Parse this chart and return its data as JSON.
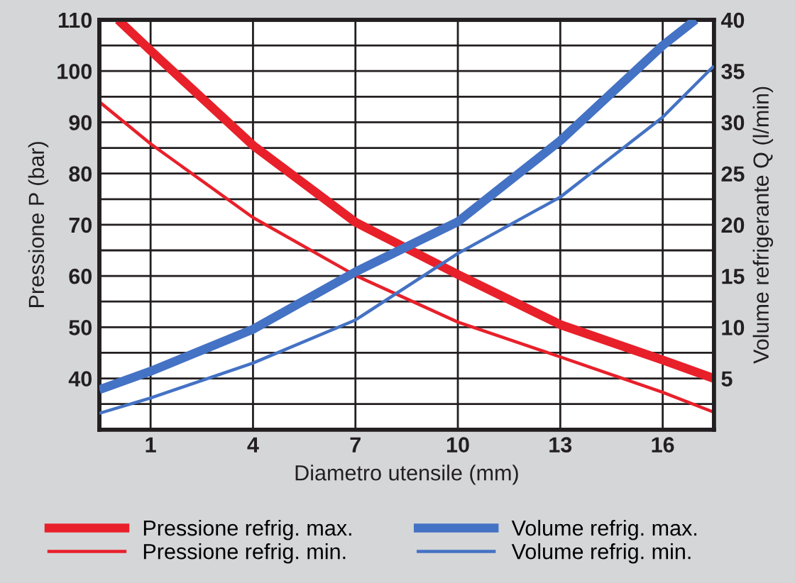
{
  "chart_data": {
    "type": "line",
    "xlabel": "Diametro utensile (mm)",
    "ylabel": "Pressione P (bar)",
    "y2label": "Volume refrigerante Q (l/min)",
    "xlim": [
      -0.5,
      17.5
    ],
    "xticks": [
      1,
      4,
      7,
      10,
      13,
      16
    ],
    "ylim": [
      30,
      110
    ],
    "yticks": [
      {
        "value": 35,
        "label": null
      },
      40,
      {
        "value": 45,
        "label": null
      },
      50,
      {
        "value": 55,
        "label": null
      },
      60,
      {
        "value": 65,
        "label": null
      },
      70,
      {
        "value": 75,
        "label": null
      },
      80,
      {
        "value": 85,
        "label": null
      },
      90,
      {
        "value": 95,
        "label": null
      },
      100,
      {
        "value": 105,
        "label": null
      },
      110
    ],
    "y2lim": [
      0,
      40
    ],
    "y2ticks": [
      5,
      10,
      15,
      20,
      25,
      30,
      35,
      40
    ],
    "grid": true,
    "legend": "bottom",
    "marker": "none",
    "line_style": "solid",
    "series": [
      {
        "name": "Pressione refrig. max.",
        "color": "#e8202a",
        "x": [
          0.05,
          1,
          4,
          7,
          10,
          13,
          16,
          17.5
        ],
        "values": [
          110,
          104,
          85.5,
          70.5,
          60.3,
          50.5,
          43.6,
          40
        ]
      },
      {
        "name": "Pressione refrig. min.",
        "color": "#e8202a",
        "x": [
          -0.5,
          1,
          4,
          7,
          10,
          13,
          16,
          17.5
        ],
        "values": [
          94,
          85.8,
          71.4,
          60.1,
          51,
          44.2,
          37.3,
          33.4
        ]
      },
      {
        "name": "Volume refrig. max.",
        "color": "#4472c4",
        "axis": "y2",
        "x": [
          -0.5,
          1,
          4,
          7,
          10,
          13,
          16,
          16.96
        ],
        "values": [
          3.9,
          5.7,
          9.8,
          15.4,
          20.3,
          28.2,
          37.5,
          40
        ]
      },
      {
        "name": "Volume refrig. min.",
        "color": "#4472c4",
        "axis": "y2",
        "x": [
          -0.5,
          1,
          4,
          7,
          10,
          13,
          16,
          17.5
        ],
        "values": [
          1.6,
          3.1,
          6.5,
          10.7,
          17.2,
          22.7,
          30.5,
          35.5
        ]
      }
    ]
  }
}
